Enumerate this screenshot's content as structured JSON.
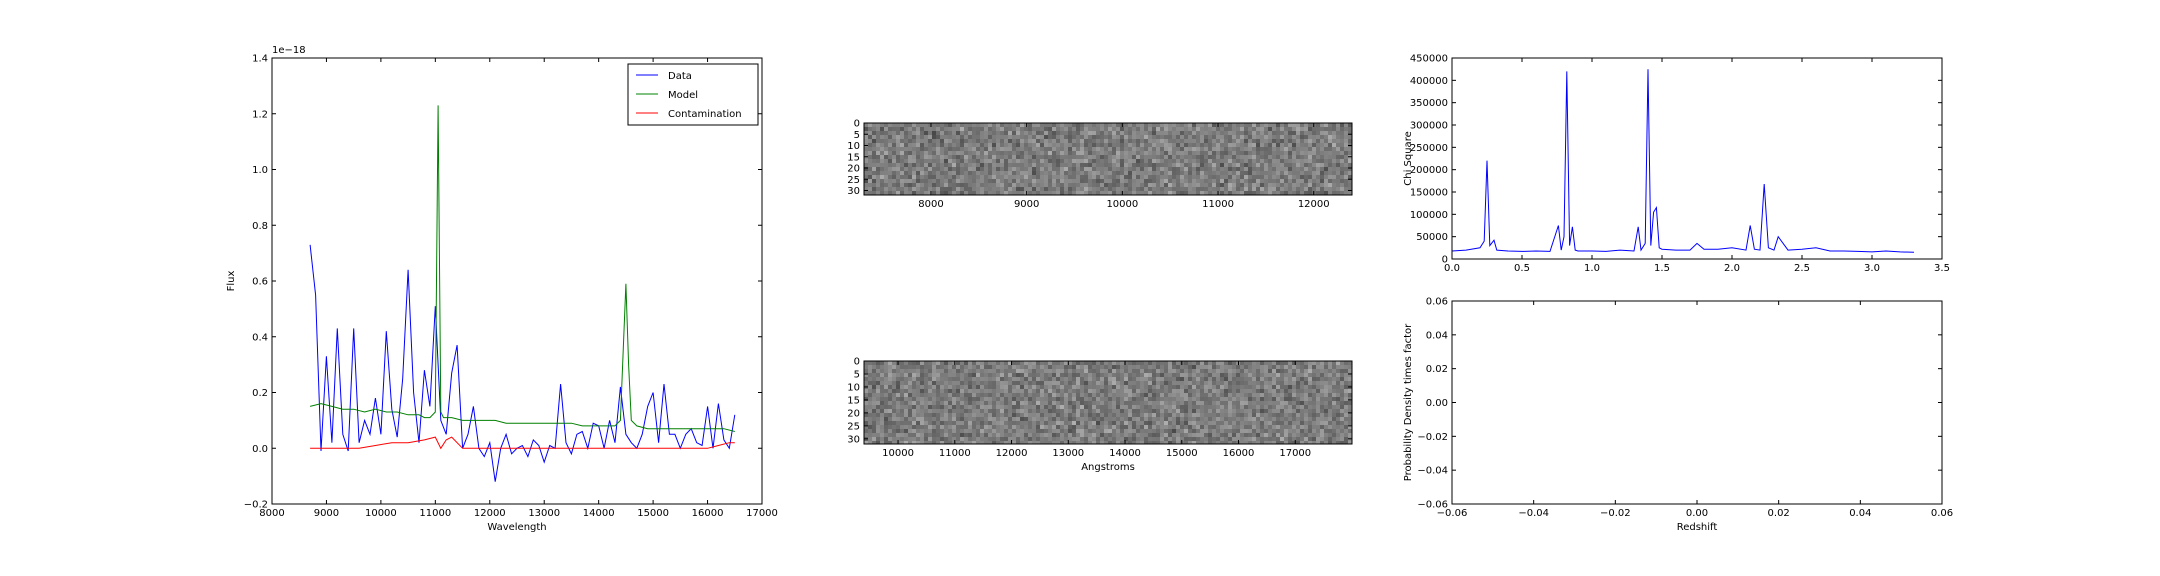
{
  "chart_data": [
    {
      "type": "line",
      "xlabel": "Wavelength",
      "ylabel": "Flux",
      "offset_label": "1e−18",
      "xlim": [
        8000,
        17000
      ],
      "ylim": [
        -0.2,
        1.4
      ],
      "xticks": [
        "8000",
        "9000",
        "10000",
        "11000",
        "12000",
        "13000",
        "14000",
        "15000",
        "16000",
        "17000"
      ],
      "yticks": [
        "−0.2",
        "0.0",
        "0.2",
        "0.4",
        "0.6",
        "0.8",
        "1.0",
        "1.2",
        "1.4"
      ],
      "legend_position": "top-right",
      "series": [
        {
          "name": "Data",
          "color": "#0000ff",
          "x": [
            8700,
            8800,
            8900,
            9000,
            9100,
            9200,
            9300,
            9400,
            9500,
            9600,
            9700,
            9800,
            9900,
            10000,
            10100,
            10200,
            10300,
            10400,
            10500,
            10600,
            10700,
            10800,
            10900,
            11000,
            11100,
            11200,
            11300,
            11400,
            11500,
            11600,
            11700,
            11800,
            11900,
            12000,
            12100,
            12200,
            12300,
            12400,
            12500,
            12600,
            12700,
            12800,
            12900,
            13000,
            13100,
            13200,
            13300,
            13400,
            13500,
            13600,
            13700,
            13800,
            13900,
            14000,
            14100,
            14200,
            14300,
            14400,
            14500,
            14600,
            14700,
            14800,
            14900,
            15000,
            15100,
            15200,
            15300,
            15400,
            15500,
            15600,
            15700,
            15800,
            15900,
            16000,
            16100,
            16200,
            16300,
            16400,
            16500
          ],
          "y": [
            0.73,
            0.55,
            -0.01,
            0.33,
            0.02,
            0.43,
            0.05,
            -0.01,
            0.43,
            0.02,
            0.1,
            0.05,
            0.18,
            0.05,
            0.42,
            0.14,
            0.04,
            0.25,
            0.64,
            0.2,
            0.02,
            0.28,
            0.15,
            0.51,
            0.1,
            0.05,
            0.27,
            0.37,
            0.0,
            0.05,
            0.15,
            0.0,
            -0.03,
            0.02,
            -0.12,
            0.0,
            0.05,
            -0.02,
            0.0,
            0.01,
            -0.03,
            0.03,
            0.01,
            -0.05,
            0.01,
            0.0,
            0.23,
            0.02,
            -0.02,
            0.05,
            0.06,
            0.0,
            0.09,
            0.08,
            0.0,
            0.1,
            0.02,
            0.22,
            0.05,
            0.02,
            0.0,
            0.05,
            0.15,
            0.2,
            0.02,
            0.23,
            0.05,
            0.05,
            0.0,
            0.05,
            0.07,
            0.02,
            0.01,
            0.15,
            0.0,
            0.16,
            0.03,
            0.0,
            0.12
          ]
        },
        {
          "name": "Model",
          "color": "#008000",
          "x": [
            8700,
            8900,
            9100,
            9300,
            9500,
            9700,
            9900,
            10100,
            10300,
            10500,
            10700,
            10800,
            10900,
            11000,
            11050,
            11100,
            11150,
            11300,
            11500,
            11700,
            11900,
            12100,
            12300,
            12500,
            12700,
            12900,
            13100,
            13300,
            13500,
            13700,
            13900,
            14100,
            14300,
            14400,
            14450,
            14500,
            14550,
            14600,
            14700,
            14900,
            15100,
            15300,
            15500,
            15700,
            15900,
            16100,
            16300,
            16500
          ],
          "y": [
            0.15,
            0.16,
            0.15,
            0.14,
            0.14,
            0.13,
            0.14,
            0.13,
            0.13,
            0.12,
            0.12,
            0.11,
            0.11,
            0.13,
            1.23,
            0.13,
            0.11,
            0.11,
            0.1,
            0.1,
            0.1,
            0.1,
            0.09,
            0.09,
            0.09,
            0.09,
            0.09,
            0.09,
            0.09,
            0.08,
            0.08,
            0.08,
            0.08,
            0.1,
            0.35,
            0.59,
            0.3,
            0.1,
            0.08,
            0.07,
            0.07,
            0.07,
            0.07,
            0.07,
            0.07,
            0.07,
            0.07,
            0.06
          ]
        },
        {
          "name": "Contamination",
          "color": "#ff0000",
          "x": [
            8700,
            9000,
            9300,
            9600,
            9900,
            10200,
            10500,
            10800,
            11000,
            11100,
            11200,
            11300,
            11500,
            11800,
            12100,
            12400,
            12700,
            13000,
            13300,
            13600,
            13900,
            14200,
            14500,
            14800,
            15100,
            15400,
            15700,
            16000,
            16200,
            16400,
            16500
          ],
          "y": [
            0.0,
            0.0,
            0.0,
            0.0,
            0.01,
            0.02,
            0.02,
            0.03,
            0.04,
            0.0,
            0.03,
            0.04,
            0.0,
            0.0,
            0.0,
            0.0,
            0.0,
            0.0,
            0.0,
            0.0,
            0.0,
            0.0,
            0.0,
            0.0,
            0.0,
            0.0,
            0.0,
            0.0,
            0.01,
            0.02,
            0.02
          ]
        }
      ]
    },
    {
      "type": "heatmap",
      "xlim": [
        7300,
        12400
      ],
      "ylim": [
        0,
        32
      ],
      "xticks": [
        "8000",
        "9000",
        "10000",
        "11000",
        "12000"
      ],
      "yticks": [
        "0",
        "5",
        "10",
        "15",
        "20",
        "25",
        "30"
      ],
      "colormap": "gray"
    },
    {
      "type": "heatmap",
      "xlabel": "Angstroms",
      "xlim": [
        9400,
        18000
      ],
      "ylim": [
        0,
        32
      ],
      "xticks": [
        "10000",
        "11000",
        "12000",
        "13000",
        "14000",
        "15000",
        "16000",
        "17000"
      ],
      "yticks": [
        "0",
        "5",
        "10",
        "15",
        "20",
        "25",
        "30"
      ],
      "colormap": "gray"
    },
    {
      "type": "line",
      "ylabel": "Chi Square",
      "xlim": [
        0.0,
        3.5
      ],
      "ylim": [
        0,
        450000
      ],
      "xticks": [
        "0.0",
        "0.5",
        "1.0",
        "1.5",
        "2.0",
        "2.5",
        "3.0",
        "3.5"
      ],
      "yticks": [
        "0",
        "50000",
        "100000",
        "150000",
        "200000",
        "250000",
        "300000",
        "350000",
        "400000",
        "450000"
      ],
      "series": [
        {
          "color": "#0000ff",
          "x": [
            0.0,
            0.1,
            0.2,
            0.23,
            0.25,
            0.27,
            0.3,
            0.32,
            0.4,
            0.5,
            0.6,
            0.7,
            0.76,
            0.78,
            0.8,
            0.82,
            0.84,
            0.86,
            0.88,
            0.9,
            1.0,
            1.1,
            1.2,
            1.3,
            1.33,
            1.35,
            1.38,
            1.4,
            1.42,
            1.44,
            1.46,
            1.48,
            1.5,
            1.6,
            1.7,
            1.75,
            1.8,
            1.9,
            2.0,
            2.1,
            2.13,
            2.16,
            2.2,
            2.23,
            2.26,
            2.3,
            2.33,
            2.4,
            2.5,
            2.6,
            2.7,
            2.8,
            2.9,
            3.0,
            3.1,
            3.2,
            3.3
          ],
          "y": [
            18000,
            20000,
            25000,
            40000,
            220000,
            30000,
            42000,
            20000,
            18000,
            17000,
            18000,
            17000,
            75000,
            20000,
            50000,
            420000,
            30000,
            72000,
            20000,
            18000,
            18000,
            17000,
            20000,
            18000,
            72000,
            20000,
            35000,
            425000,
            30000,
            105000,
            115000,
            25000,
            22000,
            20000,
            20000,
            35000,
            22000,
            22000,
            25000,
            20000,
            75000,
            22000,
            20000,
            168000,
            25000,
            20000,
            50000,
            20000,
            22000,
            25000,
            18000,
            18000,
            17000,
            16000,
            18000,
            16000,
            15000
          ]
        }
      ]
    },
    {
      "type": "line",
      "xlabel": "Redshift",
      "ylabel": "Probability Density times factor",
      "xlim": [
        -0.06,
        0.06
      ],
      "ylim": [
        -0.06,
        0.06
      ],
      "xticks": [
        "−0.06",
        "−0.04",
        "−0.02",
        "0.00",
        "0.02",
        "0.04",
        "0.06"
      ],
      "yticks": [
        "−0.06",
        "−0.04",
        "−0.02",
        "0.00",
        "0.02",
        "0.04",
        "0.06"
      ],
      "series": []
    }
  ]
}
